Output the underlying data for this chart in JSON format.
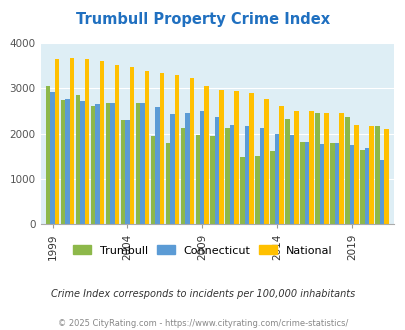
{
  "title": "Trumbull Property Crime Index",
  "years": [
    1999,
    2000,
    2001,
    2002,
    2003,
    2004,
    2005,
    2006,
    2007,
    2008,
    2009,
    2010,
    2011,
    2012,
    2013,
    2014,
    2015,
    2016,
    2017,
    2018,
    2019,
    2020,
    2021
  ],
  "trumbull": [
    3040,
    2750,
    2850,
    2600,
    2670,
    2290,
    2680,
    1950,
    1800,
    2130,
    1980,
    1950,
    2130,
    1480,
    1500,
    1620,
    2320,
    1810,
    2450,
    1790,
    2360,
    1640,
    2160
  ],
  "connecticut": [
    2920,
    2760,
    2730,
    2660,
    2680,
    2300,
    2680,
    2580,
    2430,
    2450,
    2500,
    2360,
    2190,
    2160,
    2130,
    2000,
    1960,
    1810,
    1780,
    1800,
    1760,
    1680,
    1420
  ],
  "national": [
    3640,
    3660,
    3640,
    3600,
    3520,
    3470,
    3380,
    3340,
    3290,
    3220,
    3060,
    2970,
    2940,
    2890,
    2770,
    2620,
    2510,
    2490,
    2450,
    2450,
    2200,
    2160,
    2100
  ],
  "trumbull_color": "#8db84a",
  "connecticut_color": "#5b9bd5",
  "national_color": "#ffc000",
  "bg_color": "#deeef5",
  "title_color": "#2070c0",
  "ylim": [
    0,
    4000
  ],
  "yticks": [
    0,
    1000,
    2000,
    3000,
    4000
  ],
  "xtick_year_labels": [
    "1999",
    "2004",
    "2009",
    "2014",
    "2019"
  ],
  "xtick_year_positions": [
    0,
    5,
    10,
    15,
    20
  ],
  "subtitle": "Crime Index corresponds to incidents per 100,000 inhabitants",
  "footer": "© 2025 CityRating.com - https://www.cityrating.com/crime-statistics/",
  "legend_labels": [
    "Trumbull",
    "Connecticut",
    "National"
  ],
  "bar_width": 0.3
}
